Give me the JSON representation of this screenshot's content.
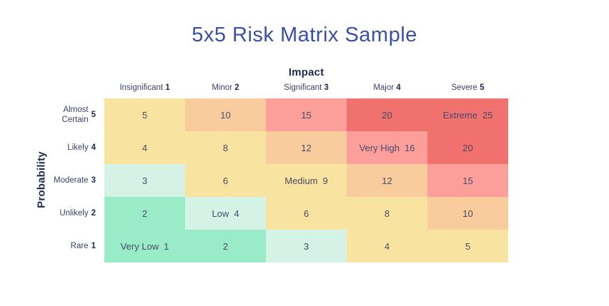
{
  "title": "5x5 Risk Matrix Sample",
  "axes": {
    "x": "Impact",
    "y": "Probability"
  },
  "colors": {
    "title_blue": "#3a50a6",
    "axis_navy": "#1f2a4e",
    "label_navy": "#3a4368",
    "cell_text": "#474c68",
    "yellow": "#f9e3a1",
    "orange": "#f8cc9c",
    "salmon": "#fc9f9b",
    "red": "#f0716e",
    "green": "#9aebc8",
    "mint": "#d4f3e6",
    "background": "#ffffff"
  },
  "matrix": {
    "columns": [
      {
        "label": "Insignificant",
        "level": "1"
      },
      {
        "label": "Minor",
        "level": "2"
      },
      {
        "label": "Significant",
        "level": "3"
      },
      {
        "label": "Major",
        "level": "4"
      },
      {
        "label": "Severe",
        "level": "5"
      }
    ],
    "rows": [
      {
        "label": "Almost Certain",
        "level": "5",
        "cells": [
          {
            "label": "",
            "value": "5",
            "color": "yellow"
          },
          {
            "label": "",
            "value": "10",
            "color": "orange"
          },
          {
            "label": "",
            "value": "15",
            "color": "salmon"
          },
          {
            "label": "",
            "value": "20",
            "color": "red"
          },
          {
            "label": "Extreme",
            "value": "25",
            "color": "red"
          }
        ]
      },
      {
        "label": "Likely",
        "level": "4",
        "cells": [
          {
            "label": "",
            "value": "4",
            "color": "yellow"
          },
          {
            "label": "",
            "value": "8",
            "color": "yellow"
          },
          {
            "label": "",
            "value": "12",
            "color": "orange"
          },
          {
            "label": "Very High",
            "value": "16",
            "color": "salmon"
          },
          {
            "label": "",
            "value": "20",
            "color": "red"
          }
        ]
      },
      {
        "label": "Moderate",
        "level": "3",
        "cells": [
          {
            "label": "",
            "value": "3",
            "color": "mint"
          },
          {
            "label": "",
            "value": "6",
            "color": "yellow"
          },
          {
            "label": "Medium",
            "value": "9",
            "color": "yellow"
          },
          {
            "label": "",
            "value": "12",
            "color": "orange"
          },
          {
            "label": "",
            "value": "15",
            "color": "salmon"
          }
        ]
      },
      {
        "label": "Unlikely",
        "level": "2",
        "cells": [
          {
            "label": "",
            "value": "2",
            "color": "green"
          },
          {
            "label": "Low",
            "value": "4",
            "color": "mint"
          },
          {
            "label": "",
            "value": "6",
            "color": "yellow"
          },
          {
            "label": "",
            "value": "8",
            "color": "yellow"
          },
          {
            "label": "",
            "value": "10",
            "color": "orange"
          }
        ]
      },
      {
        "label": "Rare",
        "level": "1",
        "cells": [
          {
            "label": "Very Low",
            "value": "1",
            "color": "green"
          },
          {
            "label": "",
            "value": "2",
            "color": "green"
          },
          {
            "label": "",
            "value": "3",
            "color": "mint"
          },
          {
            "label": "",
            "value": "4",
            "color": "yellow"
          },
          {
            "label": "",
            "value": "5",
            "color": "yellow"
          }
        ]
      }
    ]
  },
  "chart_data": {
    "type": "heatmap",
    "title": "5x5 Risk Matrix Sample",
    "xlabel": "Impact",
    "ylabel": "Probability",
    "x_categories": [
      "Insignificant 1",
      "Minor 2",
      "Significant 3",
      "Major 4",
      "Severe 5"
    ],
    "y_categories": [
      "Almost Certain 5",
      "Likely 4",
      "Moderate 3",
      "Unlikely 2",
      "Rare 1"
    ],
    "values": [
      [
        5,
        10,
        15,
        20,
        25
      ],
      [
        4,
        8,
        12,
        16,
        20
      ],
      [
        3,
        6,
        9,
        12,
        15
      ],
      [
        2,
        4,
        6,
        8,
        10
      ],
      [
        1,
        2,
        3,
        4,
        5
      ]
    ],
    "cell_colors": [
      [
        "yellow",
        "orange",
        "salmon",
        "red",
        "red"
      ],
      [
        "yellow",
        "yellow",
        "orange",
        "salmon",
        "red"
      ],
      [
        "mint",
        "yellow",
        "yellow",
        "orange",
        "salmon"
      ],
      [
        "green",
        "mint",
        "yellow",
        "yellow",
        "orange"
      ],
      [
        "green",
        "green",
        "mint",
        "yellow",
        "yellow"
      ]
    ],
    "annotations": [
      {
        "row": 0,
        "col": 4,
        "label": "Extreme",
        "value": 25
      },
      {
        "row": 1,
        "col": 3,
        "label": "Very High",
        "value": 16
      },
      {
        "row": 2,
        "col": 2,
        "label": "Medium",
        "value": 9
      },
      {
        "row": 3,
        "col": 1,
        "label": "Low",
        "value": 4
      },
      {
        "row": 4,
        "col": 0,
        "label": "Very Low",
        "value": 1
      }
    ],
    "legend": "none",
    "grid": false
  }
}
